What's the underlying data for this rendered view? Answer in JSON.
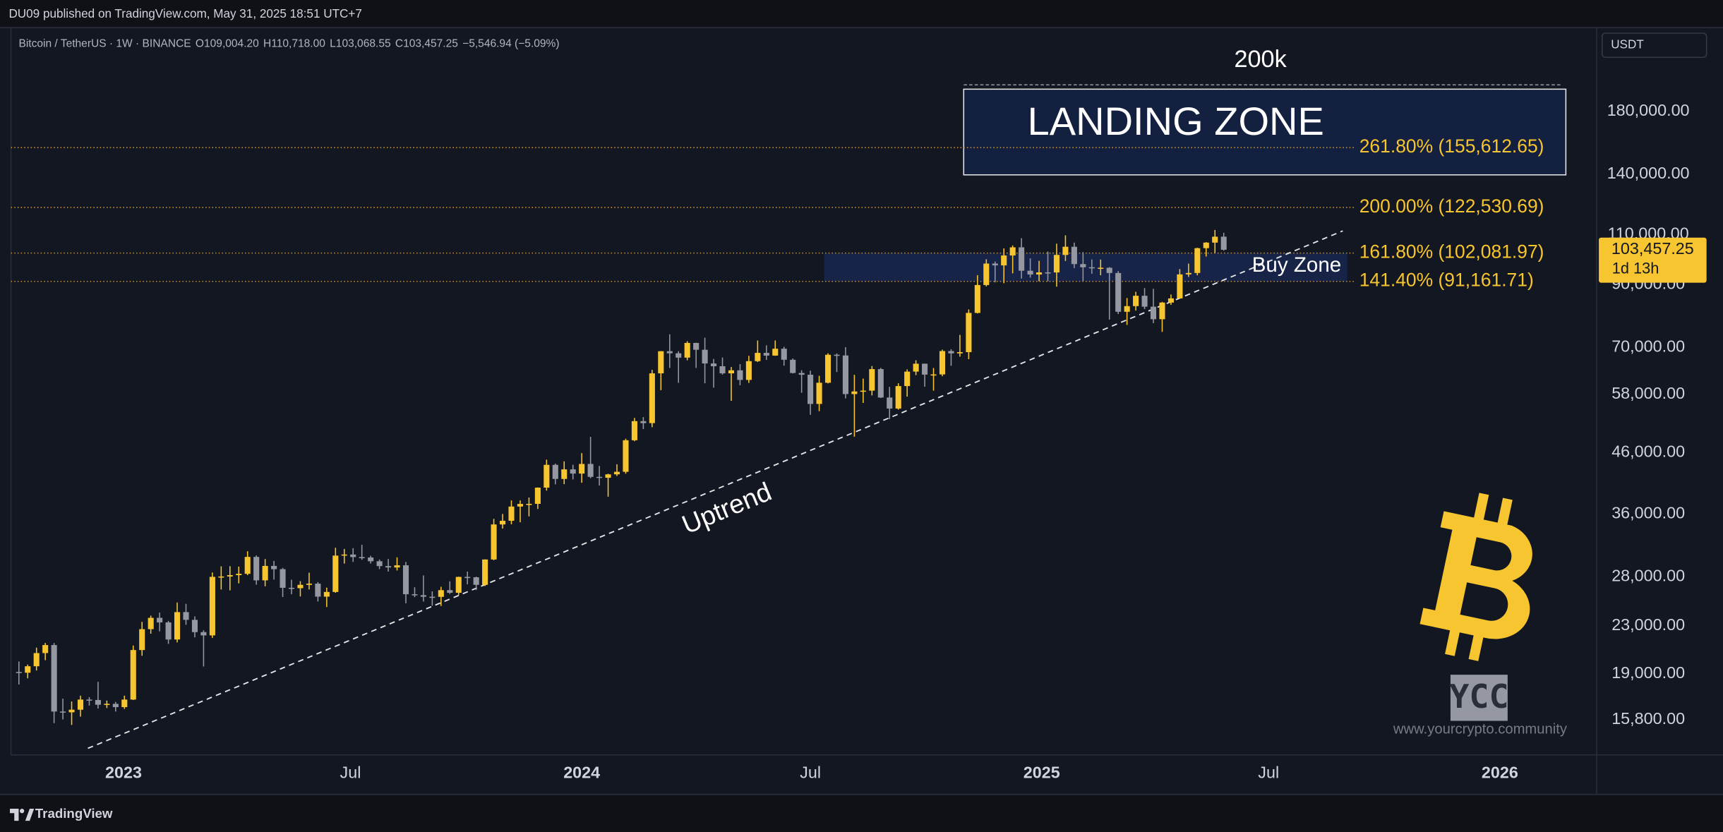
{
  "header": {
    "publisher": "DU09 published on TradingView.com, May 31, 2025 18:51 UTC+7",
    "symbol": "Bitcoin / TetherUS · 1W · BINANCE",
    "ohlc": [
      "O109,004.20",
      "H110,718.00",
      "L103,068.55",
      "C103,457.25",
      "−5,546.94 (−5.09%)"
    ],
    "currency": "USDT"
  },
  "chart_data": {
    "type": "candlestick",
    "log_scale": true,
    "grid": false,
    "up_color": "#f7c52f",
    "down_color": "#9598a1",
    "open": [
      19130,
      19070,
      19570,
      20630,
      21300,
      16330,
      16280,
      16450,
      17130,
      17100,
      16780,
      16840,
      16620,
      17130,
      20880,
      22700,
      23750,
      23320,
      21780,
      24300,
      23560,
      22430,
      22140,
      27980,
      28020,
      28170,
      28320,
      30300,
      27590,
      29230,
      28850,
      26780,
      26740,
      27100,
      27230,
      25850,
      26340,
      30460,
      30590,
      30280,
      30230,
      29780,
      29210,
      29050,
      29300,
      26100,
      26000,
      25840,
      25830,
      26530,
      26250,
      27970,
      27930,
      27100,
      29990,
      34500,
      35010,
      37060,
      37450,
      37460,
      39970,
      43780,
      41380,
      43000,
      42280,
      43940,
      41730,
      41580,
      42150,
      42580,
      48300,
      52140,
      51730,
      63120,
      68960,
      68390,
      67210,
      71280,
      69360,
      65660,
      64940,
      63120,
      63890,
      61480,
      66270,
      68500,
      67760,
      69650,
      66640,
      63210,
      62770,
      55850,
      60790,
      67990,
      67800,
      58100,
      58710,
      58900,
      64200,
      57300,
      54830,
      59990,
      63560,
      65600,
      62800,
      62850,
      69000,
      68370,
      68700,
      80370,
      89850,
      97900,
      97180,
      101110,
      104460,
      95130,
      93710,
      94500,
      94480,
      101330,
      104700,
      97700,
      96460,
      96170,
      96270,
      94270,
      80730,
      82580,
      86070,
      82390,
      78370,
      83760,
      85170,
      93750,
      94280,
      104110,
      106450,
      109004.2
    ],
    "high": [
      19950,
      19700,
      21080,
      21480,
      21470,
      17190,
      17000,
      17400,
      17300,
      18390,
      17060,
      16970,
      17400,
      21260,
      23370,
      23960,
      24250,
      23460,
      25250,
      25120,
      23890,
      22600,
      28470,
      29180,
      29200,
      29150,
      31000,
      30490,
      30040,
      29820,
      29000,
      27660,
      27500,
      28450,
      27400,
      26800,
      31430,
      31280,
      31380,
      31800,
      30440,
      29990,
      30050,
      30250,
      29690,
      26840,
      28140,
      26400,
      26890,
      27480,
      28000,
      28580,
      28000,
      30000,
      35280,
      35980,
      37980,
      37980,
      38420,
      40000,
      44700,
      44000,
      44400,
      43800,
      45880,
      48970,
      43580,
      42250,
      43880,
      48600,
      52820,
      52980,
      64000,
      69000,
      73780,
      68950,
      71770,
      71340,
      72800,
      66860,
      67240,
      64740,
      65500,
      67700,
      71980,
      70600,
      71990,
      70200,
      66980,
      63900,
      63800,
      62500,
      68400,
      68350,
      70080,
      62750,
      61800,
      65000,
      64500,
      59800,
      60670,
      64130,
      66500,
      65620,
      64480,
      69400,
      69500,
      73620,
      81500,
      93480,
      99590,
      98700,
      104000,
      105250,
      108350,
      99960,
      98980,
      102720,
      106000,
      109600,
      106460,
      102500,
      99500,
      99480,
      96500,
      95000,
      85300,
      87450,
      88760,
      88500,
      84000,
      86500,
      95760,
      97900,
      104300,
      106660,
      111980,
      110718.0
    ],
    "low": [
      18190,
      18650,
      19240,
      20050,
      15590,
      15820,
      15480,
      16000,
      16730,
      16530,
      16560,
      16330,
      16500,
      17100,
      20410,
      22290,
      22500,
      21400,
      21530,
      23100,
      21970,
      19550,
      21920,
      26600,
      26510,
      27260,
      28170,
      27120,
      26940,
      27670,
      25810,
      26100,
      25870,
      26600,
      25350,
      24800,
      26250,
      29500,
      29700,
      29950,
      29510,
      28860,
      28580,
      28700,
      25170,
      25800,
      25350,
      24930,
      24900,
      26130,
      26000,
      27160,
      26540,
      26970,
      29900,
      33930,
      34520,
      34800,
      35630,
      36700,
      39500,
      40500,
      40530,
      41300,
      40750,
      41500,
      40300,
      38550,
      41880,
      42260,
      48120,
      50520,
      50900,
      59000,
      64500,
      60780,
      66500,
      64500,
      60660,
      59600,
      62790,
      56550,
      60180,
      60750,
      66050,
      66600,
      67700,
      65080,
      63100,
      58400,
      53480,
      54260,
      60630,
      63450,
      57100,
      49000,
      56080,
      57790,
      57200,
      52550,
      54590,
      57500,
      62670,
      59830,
      58900,
      62400,
      65050,
      67480,
      66800,
      80200,
      89350,
      90800,
      90500,
      94150,
      92200,
      92550,
      91200,
      91200,
      89260,
      98900,
      96150,
      91230,
      94000,
      93400,
      78260,
      80000,
      76600,
      81130,
      81600,
      77150,
      74500,
      83000,
      85150,
      92800,
      93400,
      100700,
      102100,
      103068.55
    ],
    "close": [
      19070,
      19570,
      20630,
      21300,
      16330,
      16280,
      16450,
      17130,
      17100,
      16780,
      16840,
      16620,
      17130,
      20880,
      22700,
      23750,
      23320,
      21780,
      24300,
      23560,
      22430,
      22140,
      27980,
      28020,
      28170,
      28320,
      30300,
      27590,
      29230,
      28850,
      26780,
      26740,
      27100,
      27230,
      25850,
      26340,
      30460,
      30590,
      30280,
      30230,
      29780,
      29210,
      29050,
      29300,
      26100,
      26000,
      25840,
      25830,
      26530,
      26250,
      27970,
      27930,
      27100,
      29990,
      34500,
      35010,
      37060,
      37450,
      37460,
      39970,
      43780,
      41380,
      43000,
      42280,
      43940,
      41730,
      41580,
      42150,
      42580,
      48300,
      52140,
      51730,
      63120,
      68960,
      68390,
      67210,
      71280,
      69360,
      65660,
      64940,
      63120,
      63890,
      61480,
      66270,
      68500,
      67760,
      69650,
      66640,
      63210,
      62770,
      55850,
      60790,
      67990,
      67800,
      58100,
      58710,
      58900,
      64200,
      57300,
      54830,
      59990,
      63560,
      65600,
      62800,
      62850,
      69000,
      68370,
      68700,
      80370,
      89850,
      97900,
      97180,
      101110,
      104460,
      95130,
      93710,
      94500,
      94480,
      101330,
      104700,
      97700,
      96460,
      96170,
      96270,
      94270,
      80730,
      82580,
      86070,
      82390,
      78370,
      83760,
      85170,
      93750,
      94280,
      104110,
      106450,
      109000,
      103457.25
    ],
    "xlim": [
      -0.9,
      179.4
    ],
    "xticks": [
      {
        "value": 11.9,
        "label": "2023"
      },
      {
        "value": 37.7,
        "label": "Jul"
      },
      {
        "value": 64.0,
        "label": "2024"
      },
      {
        "value": 90.0,
        "label": "Jul"
      },
      {
        "value": 116.3,
        "label": "2025"
      },
      {
        "value": 142.1,
        "label": "Jul"
      },
      {
        "value": 168.4,
        "label": "2026"
      }
    ],
    "ylim": [
      13730,
      251400
    ],
    "yticks": [
      {
        "value": 180000,
        "label": "180,000.00"
      },
      {
        "value": 140000,
        "label": "140,000.00"
      },
      {
        "value": 110000,
        "label": "110,000.00"
      },
      {
        "value": 90000,
        "label": "90,000.00"
      },
      {
        "value": 70000,
        "label": "70,000.00"
      },
      {
        "value": 58000,
        "label": "58,000.00"
      },
      {
        "value": 46000,
        "label": "46,000.00"
      },
      {
        "value": 36000,
        "label": "36,000.00"
      },
      {
        "value": 28000,
        "label": "28,000.00"
      },
      {
        "value": 23000,
        "label": "23,000.00"
      },
      {
        "value": 19000,
        "label": "19,000.00"
      },
      {
        "value": 15800,
        "label": "15,800.00"
      }
    ],
    "levels": [
      {
        "value": 155612.65,
        "label": "261.80% (155,612.65)"
      },
      {
        "value": 122530.69,
        "label": "200.00% (122,530.69)"
      },
      {
        "value": 102081.97,
        "label": "161.80% (102,081.97)"
      },
      {
        "value": 91161.71,
        "label": "141.40% (91,161.71)"
      }
    ],
    "level_color": "#f7c52f",
    "target": {
      "value": 200000,
      "label": "200k"
    },
    "landing_zone": "LANDING ZONE",
    "buy_zone": "Buy Zone",
    "trend": "Uptrend",
    "last_price": {
      "value": 103457.25,
      "label": "103,457.25",
      "countdown": "1d 13h"
    }
  },
  "watermark": {
    "logo": "YCC",
    "site": "www.yourcrypto.community"
  },
  "footer": {
    "brand": "TradingView"
  }
}
